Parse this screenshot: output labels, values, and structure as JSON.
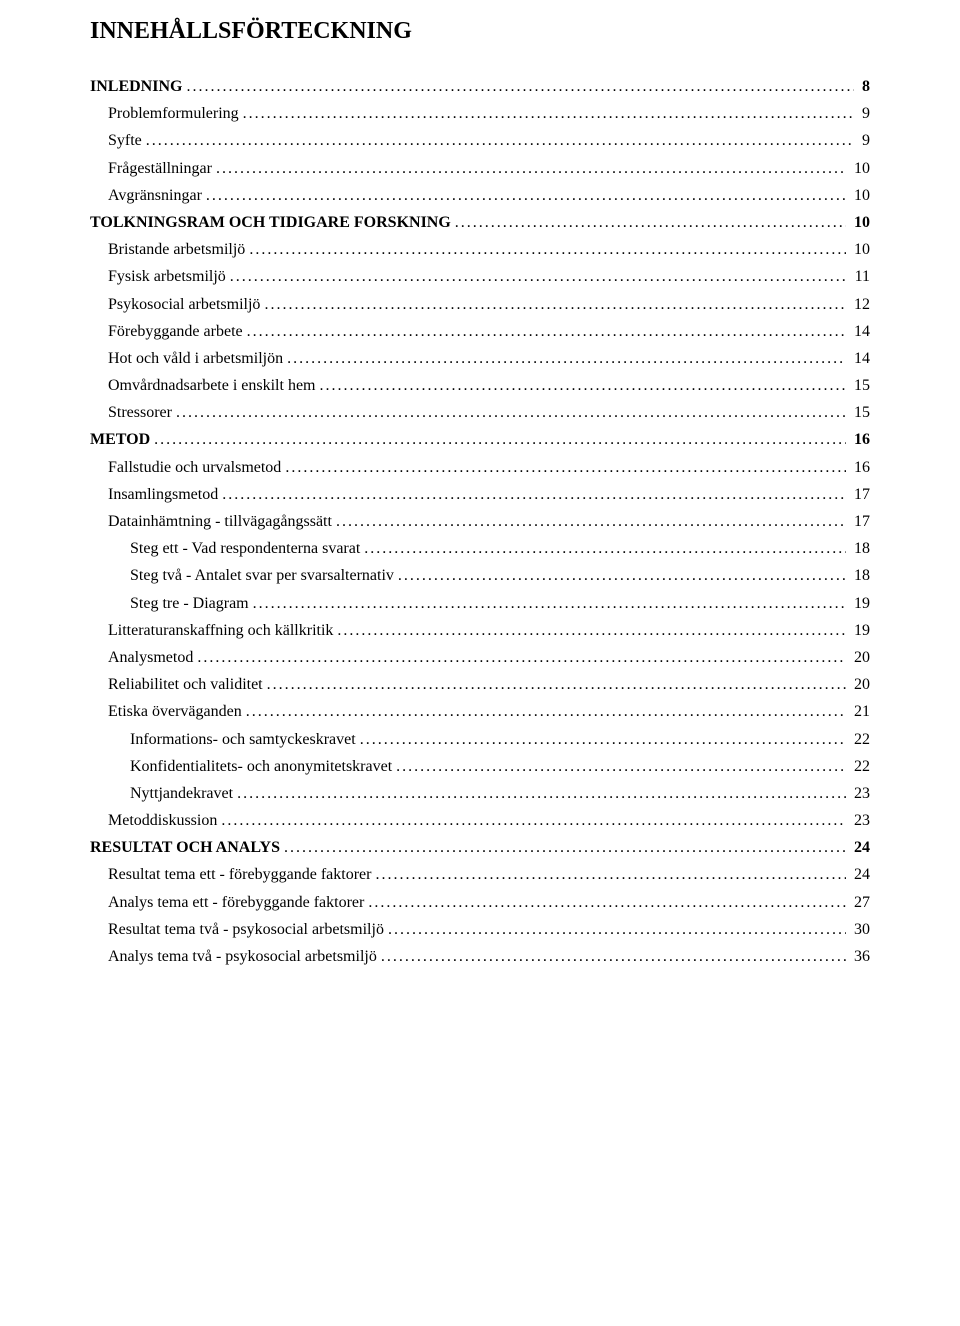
{
  "title": "INNEHÅLLSFÖRTECKNING",
  "fontFamily": "Times New Roman",
  "titleFontSize": 24,
  "bodyFontSize": 16,
  "textColor": "#000000",
  "backgroundColor": "#ffffff",
  "leaderChar": ".",
  "entries": [
    {
      "label": "INLEDNING",
      "page": "8",
      "indent": 0,
      "bold": true
    },
    {
      "label": "Problemformulering",
      "page": "9",
      "indent": 1,
      "bold": false
    },
    {
      "label": "Syfte",
      "page": "9",
      "indent": 1,
      "bold": false
    },
    {
      "label": "Frågeställningar",
      "page": "10",
      "indent": 1,
      "bold": false
    },
    {
      "label": "Avgränsningar",
      "page": "10",
      "indent": 1,
      "bold": false
    },
    {
      "label": "TOLKNINGSRAM OCH TIDIGARE FORSKNING",
      "page": "10",
      "indent": 0,
      "bold": true
    },
    {
      "label": "Bristande arbetsmiljö",
      "page": "10",
      "indent": 1,
      "bold": false
    },
    {
      "label": "Fysisk arbetsmiljö",
      "page": "11",
      "indent": 1,
      "bold": false
    },
    {
      "label": "Psykosocial arbetsmiljö",
      "page": "12",
      "indent": 1,
      "bold": false
    },
    {
      "label": "Förebyggande arbete",
      "page": "14",
      "indent": 1,
      "bold": false
    },
    {
      "label": "Hot och våld i arbetsmiljön",
      "page": "14",
      "indent": 1,
      "bold": false
    },
    {
      "label": "Omvårdnadsarbete i enskilt hem",
      "page": "15",
      "indent": 1,
      "bold": false
    },
    {
      "label": "Stressorer",
      "page": "15",
      "indent": 1,
      "bold": false
    },
    {
      "label": "METOD",
      "page": "16",
      "indent": 0,
      "bold": true
    },
    {
      "label": "Fallstudie och urvalsmetod",
      "page": "16",
      "indent": 1,
      "bold": false
    },
    {
      "label": "Insamlingsmetod",
      "page": "17",
      "indent": 1,
      "bold": false
    },
    {
      "label": "Datainhämtning - tillvägagångssätt",
      "page": "17",
      "indent": 1,
      "bold": false
    },
    {
      "label": "Steg ett - Vad respondenterna svarat",
      "page": "18",
      "indent": 2,
      "bold": false
    },
    {
      "label": "Steg två - Antalet svar per svarsalternativ",
      "page": "18",
      "indent": 2,
      "bold": false
    },
    {
      "label": "Steg tre - Diagram",
      "page": "19",
      "indent": 2,
      "bold": false
    },
    {
      "label": "Litteraturanskaffning och källkritik",
      "page": "19",
      "indent": 1,
      "bold": false
    },
    {
      "label": "Analysmetod",
      "page": "20",
      "indent": 1,
      "bold": false
    },
    {
      "label": "Reliabilitet och validitet",
      "page": "20",
      "indent": 1,
      "bold": false
    },
    {
      "label": "Etiska överväganden",
      "page": "21",
      "indent": 1,
      "bold": false
    },
    {
      "label": "Informations- och samtyckeskravet",
      "page": "22",
      "indent": 2,
      "bold": false
    },
    {
      "label": "Konfidentialitets- och anonymitetskravet",
      "page": "22",
      "indent": 2,
      "bold": false
    },
    {
      "label": "Nyttjandekravet",
      "page": "23",
      "indent": 2,
      "bold": false
    },
    {
      "label": "Metoddiskussion",
      "page": "23",
      "indent": 1,
      "bold": false
    },
    {
      "label": "RESULTAT OCH ANALYS",
      "page": "24",
      "indent": 0,
      "bold": true
    },
    {
      "label": "Resultat tema ett - förebyggande faktorer",
      "page": "24",
      "indent": 1,
      "bold": false
    },
    {
      "label": "Analys tema ett - förebyggande faktorer",
      "page": "27",
      "indent": 1,
      "bold": false
    },
    {
      "label": "Resultat tema två - psykosocial arbetsmiljö",
      "page": "30",
      "indent": 1,
      "bold": false
    },
    {
      "label": "Analys tema två - psykosocial arbetsmiljö",
      "page": "36",
      "indent": 1,
      "bold": false
    }
  ]
}
